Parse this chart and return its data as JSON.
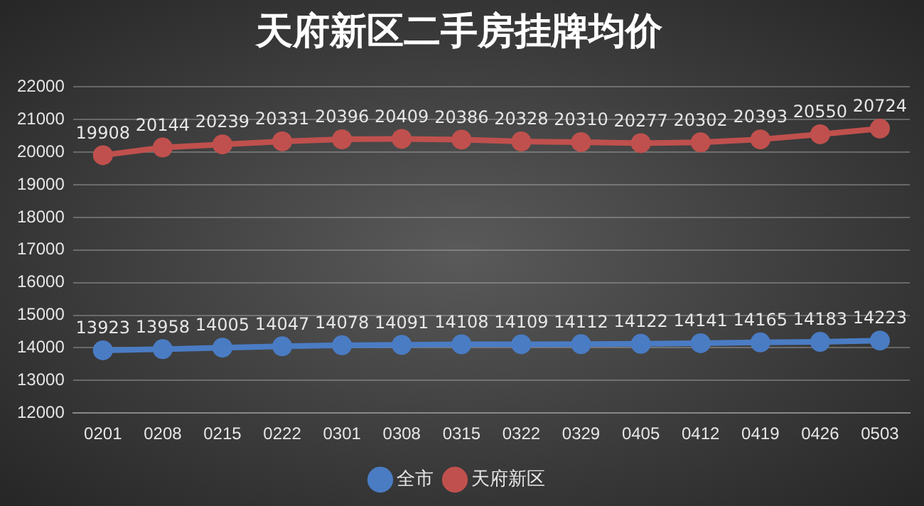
{
  "chart_data": {
    "type": "line",
    "title": "天府新区二手房挂牌均价",
    "categories": [
      "0201",
      "0208",
      "0215",
      "0222",
      "0301",
      "0308",
      "0315",
      "0322",
      "0329",
      "0405",
      "0412",
      "0419",
      "0426",
      "0503"
    ],
    "series": [
      {
        "name": "全市",
        "color": "#4a7cc4",
        "values": [
          13923,
          13958,
          14005,
          14047,
          14078,
          14091,
          14108,
          14109,
          14112,
          14122,
          14141,
          14165,
          14183,
          14223
        ]
      },
      {
        "name": "天府新区",
        "color": "#c0504d",
        "values": [
          19908,
          20144,
          20239,
          20331,
          20396,
          20409,
          20386,
          20328,
          20310,
          20277,
          20302,
          20393,
          20550,
          20724
        ]
      }
    ],
    "ylim": [
      12000,
      22000
    ],
    "yticks": [
      12000,
      13000,
      14000,
      15000,
      16000,
      17000,
      18000,
      19000,
      20000,
      21000,
      22000
    ],
    "grid": "y",
    "legend": "bottom",
    "marker": "circle",
    "line_style": "solid",
    "data_labels": true
  }
}
